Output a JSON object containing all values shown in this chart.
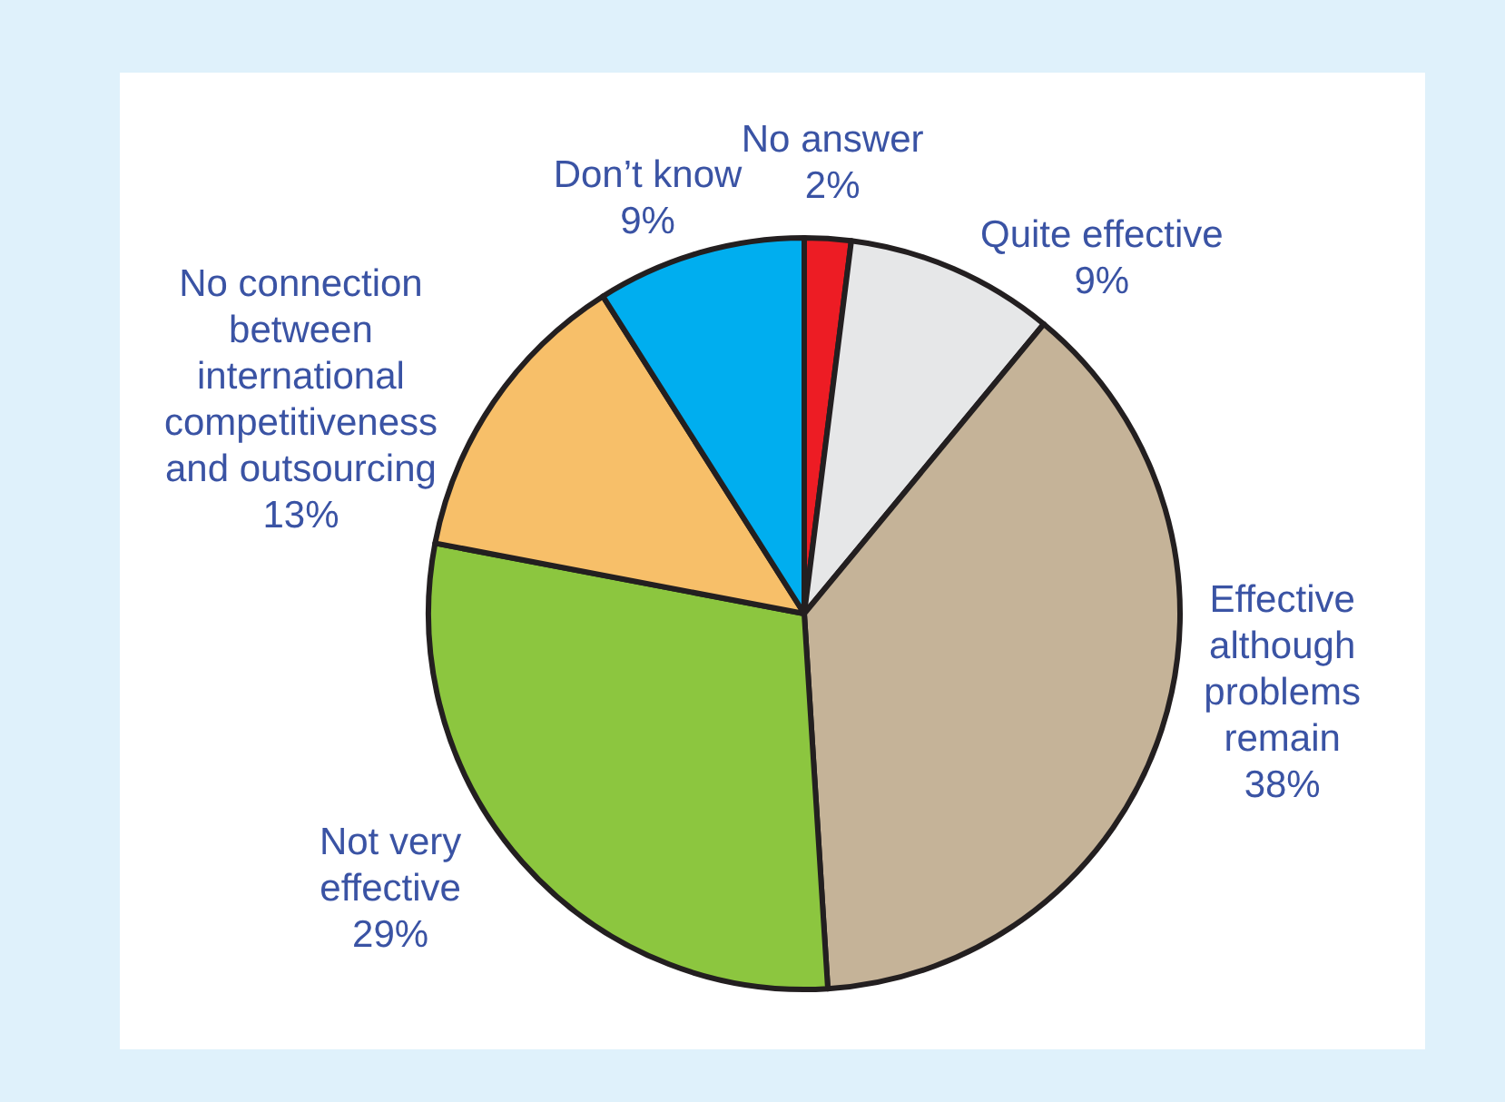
{
  "chart_data": {
    "type": "pie",
    "categories": [
      "No answer",
      "Quite effective",
      "Effective although problems remain",
      "Not very effective",
      "No connection between international competitiveness and outsourcing",
      "Don’t know"
    ],
    "values": [
      2,
      9,
      38,
      29,
      13,
      9
    ],
    "value_labels": [
      "2%",
      "9%",
      "38%",
      "29%",
      "13%",
      "9%"
    ],
    "colors": [
      "#ed1c24",
      "#e6e7e8",
      "#c5b398",
      "#8cc63f",
      "#f7bf69",
      "#00aeef"
    ]
  }
}
